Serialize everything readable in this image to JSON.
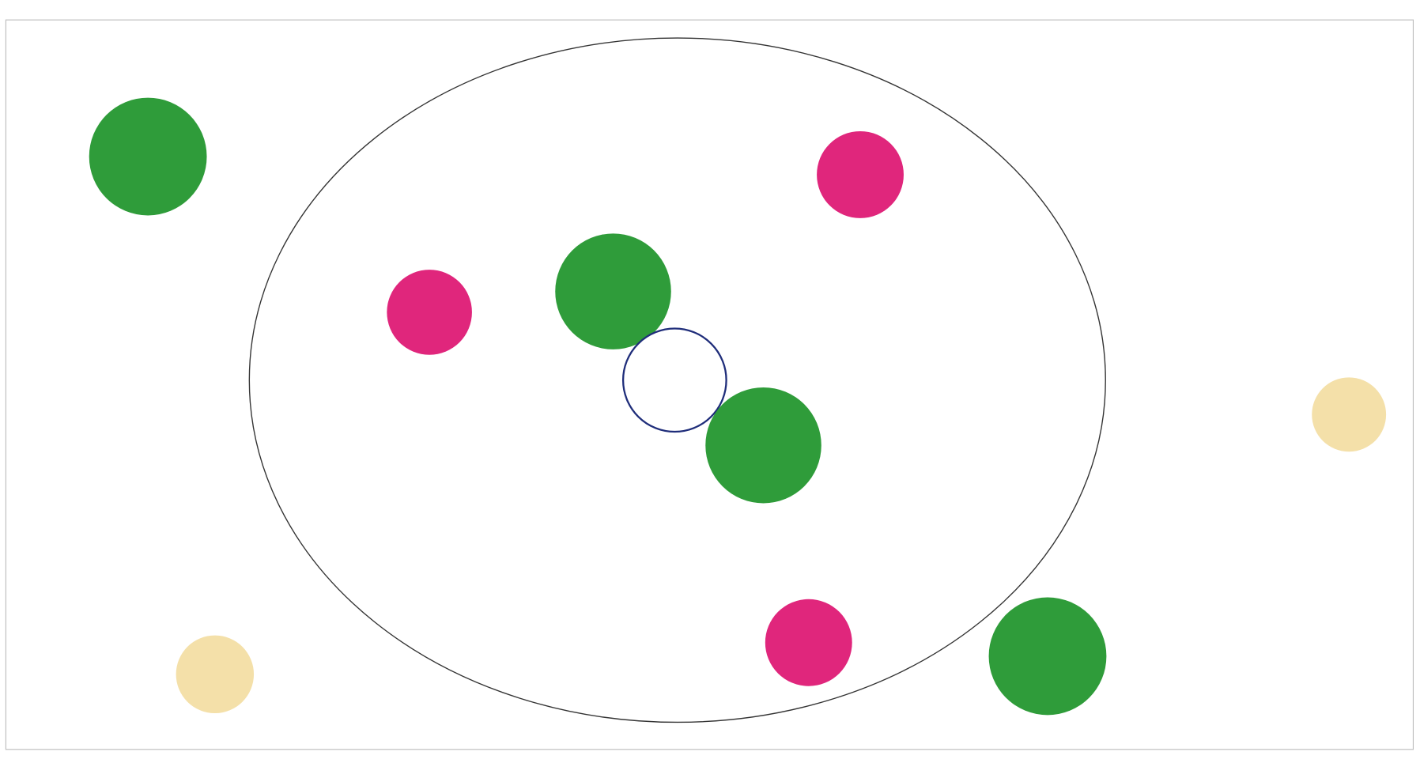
{
  "nodes": [
    {
      "color": "#2f9c3a"
    },
    {
      "color": "#e0267c"
    },
    {
      "color": "#e0267c"
    },
    {
      "color": "#2f9c3a"
    },
    {
      "color": "#ffffff"
    },
    {
      "color": "#2f9c3a"
    },
    {
      "color": "#f4e0a9"
    },
    {
      "color": "#f4e0a9"
    },
    {
      "color": "#e0267c"
    },
    {
      "color": "#2f9c3a"
    }
  ]
}
